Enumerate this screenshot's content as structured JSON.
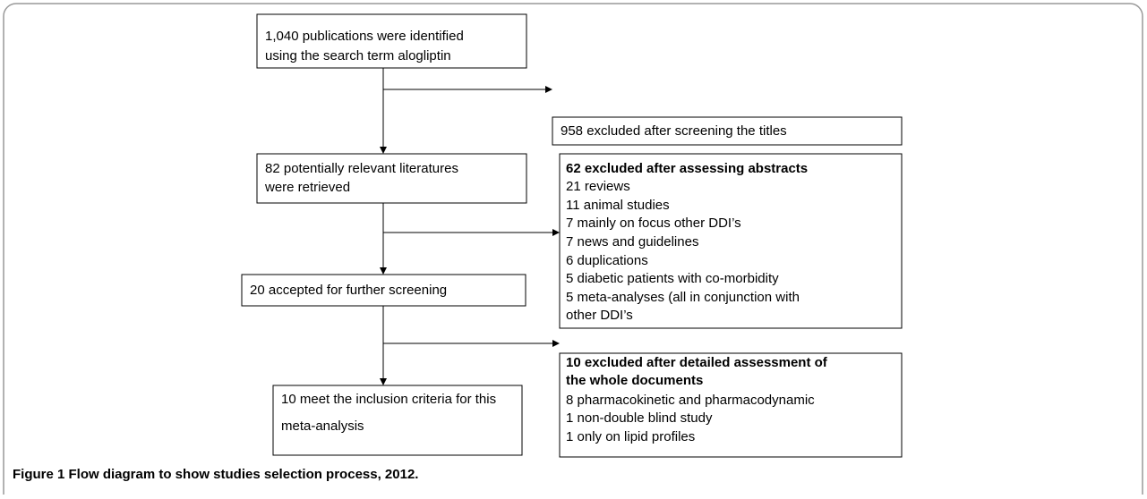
{
  "nodes": [
    {
      "lines": [
        "1,040 publications were identified",
        "using the search term alogliptin"
      ]
    },
    {
      "lines": [
        "958 excluded after screening the titles"
      ]
    },
    {
      "lines": [
        "82 potentially relevant literatures",
        "were retrieved"
      ]
    },
    {
      "title_lines": [
        "62 excluded after assessing abstracts"
      ],
      "lines": [
        "21 reviews",
        "11 animal studies",
        "7 mainly on focus other DDI’s",
        "7 news and guidelines",
        "6 duplications",
        "5 diabetic patients with co-morbidity",
        "5 meta-analyses (all in conjunction with",
        "other DDI’s"
      ]
    },
    {
      "lines": [
        "20 accepted for further screening"
      ]
    },
    {
      "title_lines": [
        "10 excluded after detailed assessment of",
        "the whole documents"
      ],
      "lines": [
        "8 pharmacokinetic and pharmacodynamic",
        "1 non-double blind study",
        "1 only on lipid profiles"
      ]
    },
    {
      "lines": [
        "10 meet the inclusion criteria for this",
        "meta-analysis"
      ]
    }
  ],
  "caption": "Figure 1 Flow diagram to show studies selection process, 2012."
}
